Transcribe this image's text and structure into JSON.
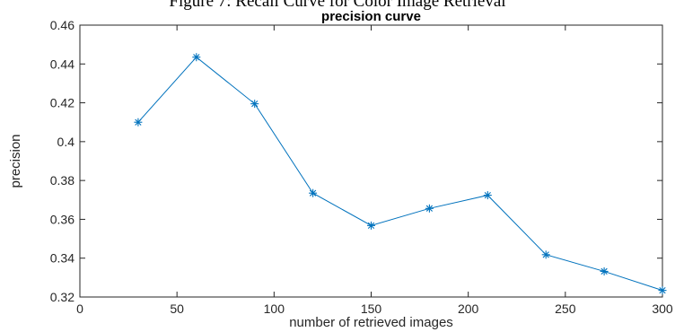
{
  "caption": "Figure 7: Recall Curve for Color Image Retrieval",
  "chart_data": {
    "type": "line",
    "title": "precision curve",
    "xlabel": "number of retrieved images",
    "ylabel": "precision",
    "xlim": [
      0,
      300
    ],
    "ylim": [
      0.32,
      0.46
    ],
    "xticks": [
      0,
      50,
      100,
      150,
      200,
      250,
      300
    ],
    "yticks": [
      0.32,
      0.34,
      0.36,
      0.38,
      0.4,
      0.42,
      0.44,
      0.46
    ],
    "xtick_labels": [
      "0",
      "50",
      "100",
      "150",
      "200",
      "250",
      "300"
    ],
    "ytick_labels": [
      "0.32",
      "0.34",
      "0.36",
      "0.38",
      "0.4",
      "0.42",
      "0.44",
      "0.46"
    ],
    "grid": false,
    "series": [
      {
        "marker": "asterisk",
        "color": "#0072BD",
        "x": [
          30,
          60,
          90,
          120,
          150,
          180,
          210,
          240,
          270,
          300
        ],
        "y": [
          0.41,
          0.4435,
          0.4195,
          0.3735,
          0.3568,
          0.3656,
          0.3724,
          0.3418,
          0.3332,
          0.3234
        ]
      }
    ]
  }
}
